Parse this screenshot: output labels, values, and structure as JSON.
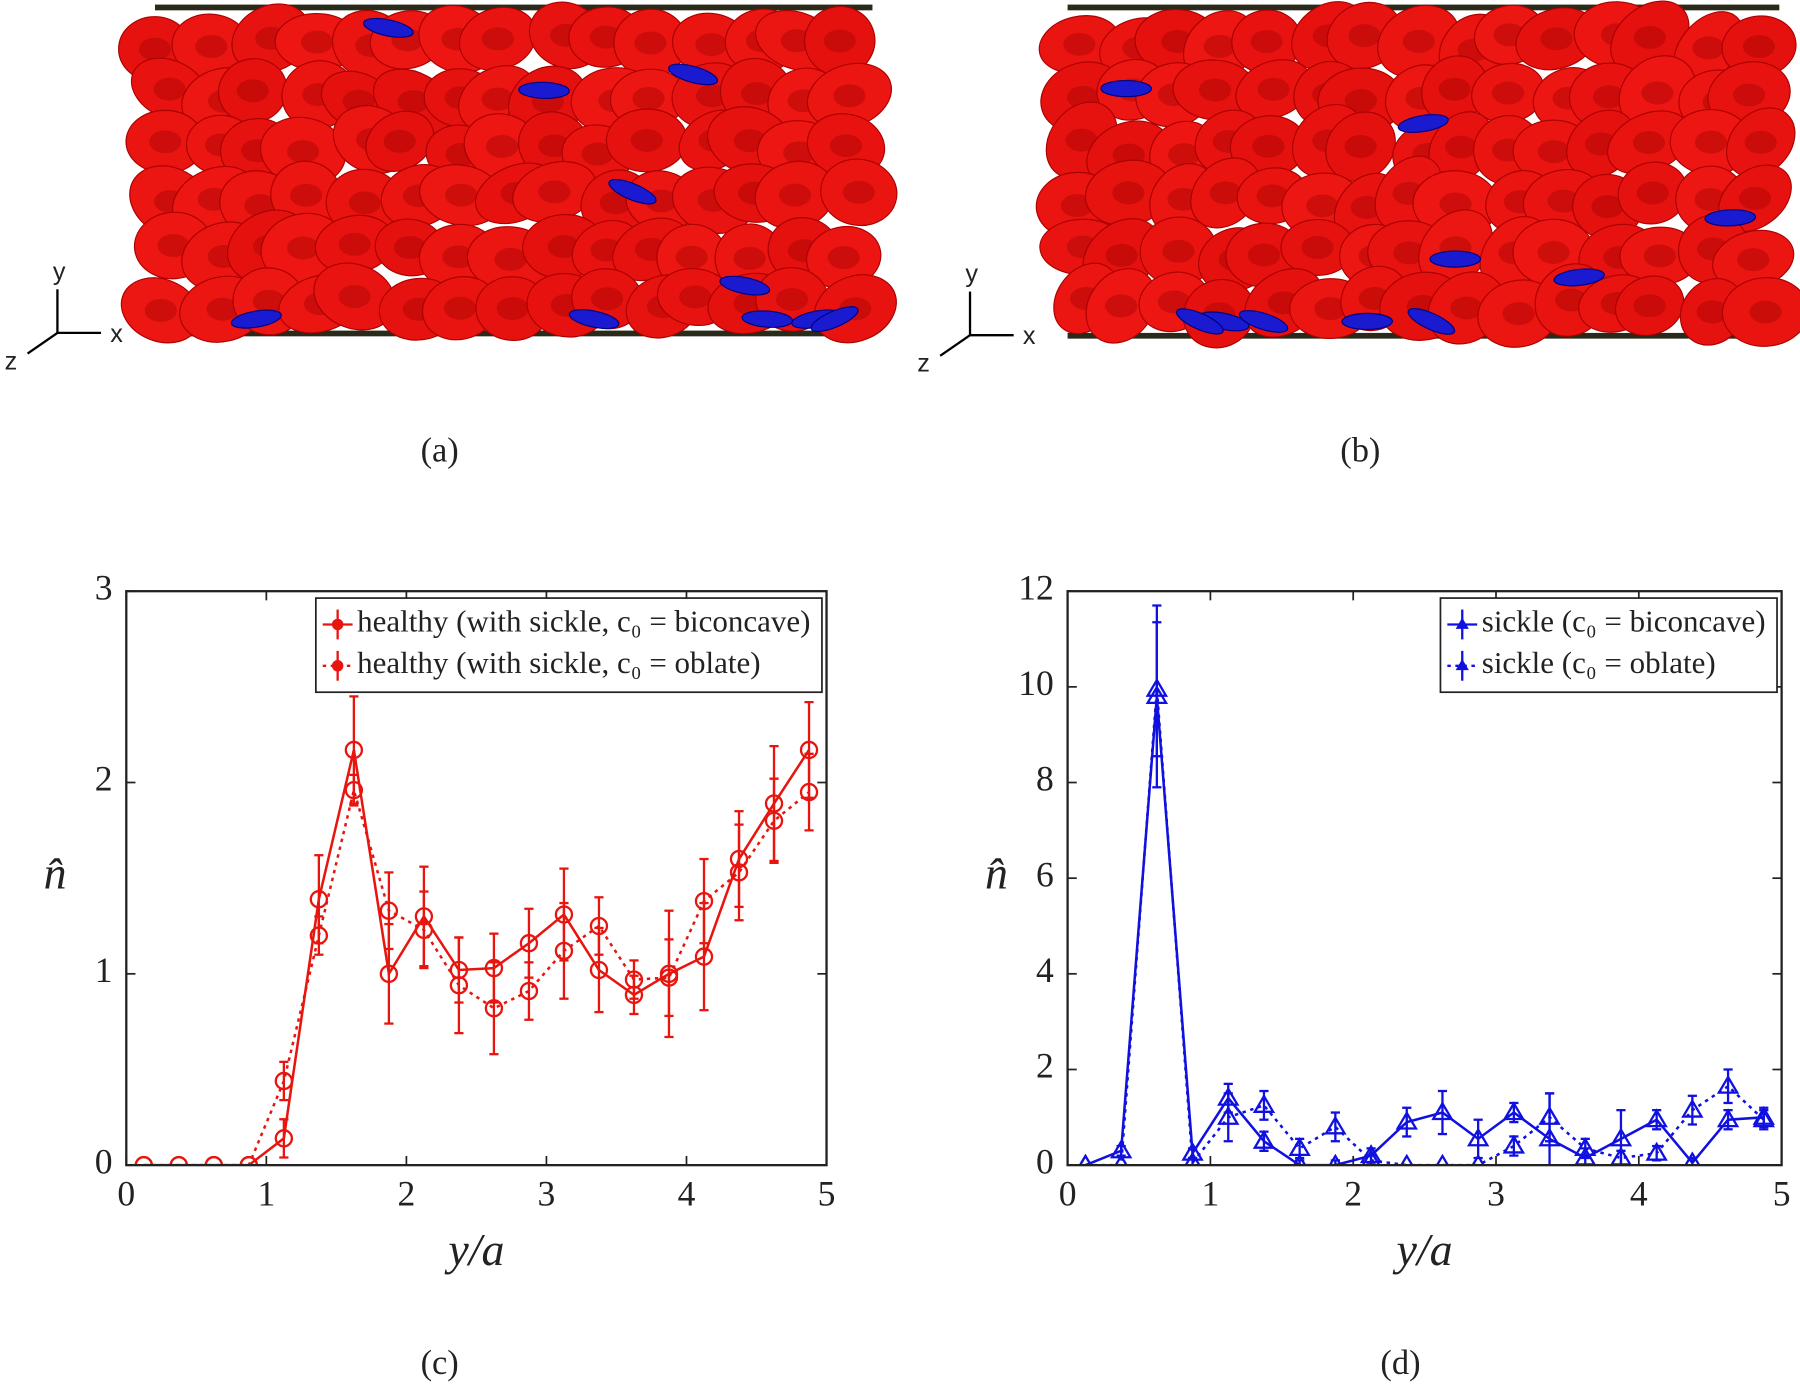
{
  "panels": [
    {
      "caption": "(a)",
      "axis_labels": [
        "y",
        "x",
        "z"
      ]
    },
    {
      "caption": "(b)",
      "axis_labels": [
        "y",
        "x",
        "z"
      ]
    }
  ],
  "chart_data": [
    {
      "type": "line",
      "caption": "(c)",
      "xlabel": "y/a",
      "ylabel": "n̂",
      "xlim": [
        0,
        5
      ],
      "ylim": [
        0,
        3
      ],
      "xticks": [
        0,
        1,
        2,
        3,
        4,
        5
      ],
      "yticks": [
        0,
        1,
        2,
        3
      ],
      "legend": "upper right",
      "x": [
        0.125,
        0.375,
        0.625,
        0.875,
        1.125,
        1.375,
        1.625,
        1.875,
        2.125,
        2.375,
        2.625,
        2.875,
        3.125,
        3.375,
        3.625,
        3.875,
        4.125,
        4.375,
        4.625,
        4.875
      ],
      "series": [
        {
          "name": "healthy (with sickle, c₀ = biconcave)",
          "color": "#e8150f",
          "line_style": "solid",
          "marker": "circle",
          "values": [
            0,
            0,
            0,
            0,
            0.14,
            1.39,
            2.17,
            1.0,
            1.3,
            1.02,
            1.03,
            1.16,
            1.31,
            1.02,
            0.89,
            1.0,
            1.09,
            1.6,
            1.89,
            2.17
          ],
          "errors": [
            0,
            0,
            0,
            0,
            0.1,
            0.23,
            0.28,
            0.26,
            0.26,
            0.17,
            0.18,
            0.18,
            0.24,
            0.22,
            0.1,
            0.33,
            0.28,
            0.25,
            0.3,
            0.25
          ]
        },
        {
          "name": "healthy (with sickle, c₀ = oblate)",
          "color": "#e8150f",
          "line_style": "dotted",
          "marker": "circle",
          "values": [
            0,
            0,
            0,
            0,
            0.44,
            1.2,
            1.96,
            1.33,
            1.23,
            0.94,
            0.82,
            0.91,
            1.12,
            1.25,
            0.97,
            0.98,
            1.38,
            1.53,
            1.8,
            1.95
          ],
          "errors": [
            0,
            0,
            0,
            0,
            0.1,
            0.1,
            0.08,
            0.2,
            0.2,
            0.25,
            0.24,
            0.15,
            0.25,
            0.15,
            0.1,
            0.2,
            0.22,
            0.25,
            0.22,
            0.2
          ]
        }
      ]
    },
    {
      "type": "line",
      "caption": "(d)",
      "xlabel": "y/a",
      "ylabel": "n̂",
      "xlim": [
        0,
        5
      ],
      "ylim": [
        0,
        12
      ],
      "xticks": [
        0,
        1,
        2,
        3,
        4,
        5
      ],
      "yticks": [
        0,
        2,
        4,
        6,
        8,
        10,
        12
      ],
      "legend": "upper right",
      "x": [
        0.125,
        0.375,
        0.625,
        0.875,
        1.125,
        1.375,
        1.625,
        1.875,
        2.125,
        2.375,
        2.625,
        2.875,
        3.125,
        3.375,
        3.625,
        3.875,
        4.125,
        4.375,
        4.625,
        4.875
      ],
      "series": [
        {
          "name": "sickle (c₀ = biconcave)",
          "color": "#1010e0",
          "line_style": "solid",
          "marker": "triangle",
          "values": [
            0,
            0.3,
            9.8,
            0.25,
            1.4,
            0.5,
            0,
            0,
            0.2,
            0.9,
            1.1,
            0.55,
            1.1,
            0.55,
            0.15,
            0.55,
            0.95,
            0.05,
            0.95,
            1.0
          ],
          "errors": [
            0,
            0.1,
            1.9,
            0.1,
            0.3,
            0.2,
            0.1,
            0.1,
            0.15,
            0.3,
            0.45,
            0.4,
            0.2,
            0.95,
            0.2,
            0.6,
            0.2,
            0.1,
            0.2,
            0.2
          ]
        },
        {
          "name": "sickle (c₀ = oblate)",
          "color": "#1010e0",
          "line_style": "dotted",
          "marker": "triangle",
          "values": [
            0,
            0,
            9.95,
            0.05,
            1.0,
            1.25,
            0.35,
            0.8,
            0.1,
            0,
            0,
            0,
            0.4,
            1.0,
            0.35,
            0.15,
            0.25,
            1.15,
            1.65,
            0.95
          ],
          "errors": [
            0,
            0,
            1.4,
            0.1,
            0.5,
            0.3,
            0.2,
            0.3,
            0.1,
            0,
            0,
            0,
            0.2,
            0.5,
            0.2,
            0.15,
            0.15,
            0.3,
            0.35,
            0.2
          ]
        }
      ]
    }
  ]
}
